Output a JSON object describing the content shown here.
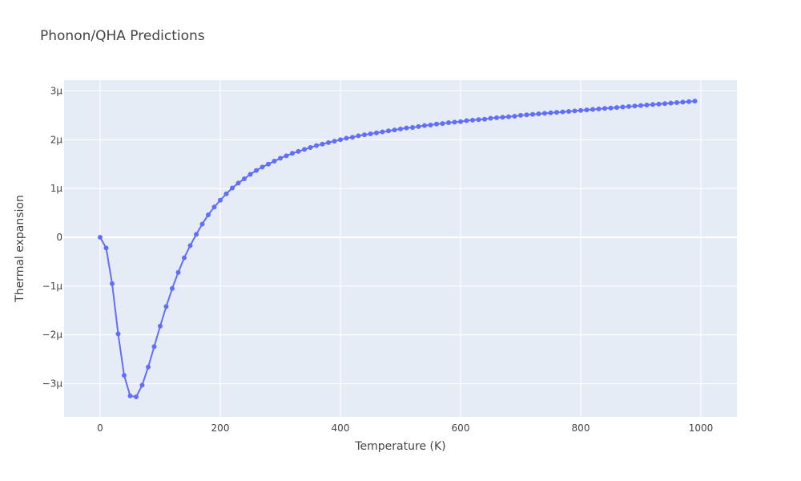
{
  "chart_data": {
    "type": "line",
    "title": "Phonon/QHA Predictions",
    "xlabel": "Temperature (K)",
    "ylabel": "Thermal expansion",
    "xlim": [
      -60,
      1060
    ],
    "ylim": [
      -3.68e-06,
      3.22e-06
    ],
    "x_ticks": [
      0,
      200,
      400,
      600,
      800,
      1000
    ],
    "x_tick_labels": [
      "0",
      "200",
      "400",
      "600",
      "800",
      "1000"
    ],
    "y_ticks": [
      -3e-06,
      -2e-06,
      -1e-06,
      0,
      1e-06,
      2e-06,
      3e-06
    ],
    "y_tick_labels": [
      "−3μ",
      "−2μ",
      "−1μ",
      "0",
      "1μ",
      "2μ",
      "3μ"
    ],
    "grid": true,
    "legend": "none",
    "colors": {
      "plot_bg": "#e5ecf6",
      "grid": "#ffffff",
      "series": "#636efa"
    },
    "series": [
      {
        "x": [
          0,
          10,
          20,
          30,
          40,
          50,
          60,
          70,
          80,
          90,
          100,
          110,
          120,
          130,
          140,
          150,
          160,
          170,
          180,
          190,
          200,
          210,
          220,
          230,
          240,
          250,
          260,
          270,
          280,
          290,
          300,
          310,
          320,
          330,
          340,
          350,
          360,
          370,
          380,
          390,
          400,
          410,
          420,
          430,
          440,
          450,
          460,
          470,
          480,
          490,
          500,
          510,
          520,
          530,
          540,
          550,
          560,
          570,
          580,
          590,
          600,
          610,
          620,
          630,
          640,
          650,
          660,
          670,
          680,
          690,
          700,
          710,
          720,
          730,
          740,
          750,
          760,
          770,
          780,
          790,
          800,
          810,
          820,
          830,
          840,
          850,
          860,
          870,
          880,
          890,
          900,
          910,
          920,
          930,
          940,
          950,
          960,
          970,
          980,
          990
        ],
        "y": [
          0,
          -2.2e-07,
          -9.5e-07,
          -1.98e-06,
          -2.83e-06,
          -3.25e-06,
          -3.27e-06,
          -3.03e-06,
          -2.66e-06,
          -2.24e-06,
          -1.82e-06,
          -1.42e-06,
          -1.05e-06,
          -7.2e-07,
          -4.2e-07,
          -1.7e-07,
          6e-08,
          2.7e-07,
          4.6e-07,
          6.2e-07,
          7.6e-07,
          8.9e-07,
          1.01e-06,
          1.11e-06,
          1.2e-06,
          1.29e-06,
          1.37e-06,
          1.44e-06,
          1.5e-06,
          1.56e-06,
          1.62e-06,
          1.67e-06,
          1.72e-06,
          1.76e-06,
          1.8e-06,
          1.84e-06,
          1.88e-06,
          1.91e-06,
          1.94e-06,
          1.97e-06,
          2e-06,
          2.03e-06,
          2.05e-06,
          2.08e-06,
          2.1e-06,
          2.12e-06,
          2.14e-06,
          2.16e-06,
          2.18e-06,
          2.2e-06,
          2.22e-06,
          2.24e-06,
          2.25e-06,
          2.27e-06,
          2.29e-06,
          2.3e-06,
          2.32e-06,
          2.33e-06,
          2.35e-06,
          2.36e-06,
          2.37e-06,
          2.39e-06,
          2.4e-06,
          2.41e-06,
          2.42e-06,
          2.44e-06,
          2.45e-06,
          2.46e-06,
          2.47e-06,
          2.48e-06,
          2.5e-06,
          2.51e-06,
          2.52e-06,
          2.53e-06,
          2.54e-06,
          2.55e-06,
          2.56e-06,
          2.57e-06,
          2.58e-06,
          2.59e-06,
          2.6e-06,
          2.61e-06,
          2.62e-06,
          2.63e-06,
          2.64e-06,
          2.65e-06,
          2.66e-06,
          2.67e-06,
          2.68e-06,
          2.69e-06,
          2.7e-06,
          2.71e-06,
          2.72e-06,
          2.73e-06,
          2.74e-06,
          2.75e-06,
          2.76e-06,
          2.77e-06,
          2.78e-06,
          2.79e-06
        ]
      }
    ]
  }
}
